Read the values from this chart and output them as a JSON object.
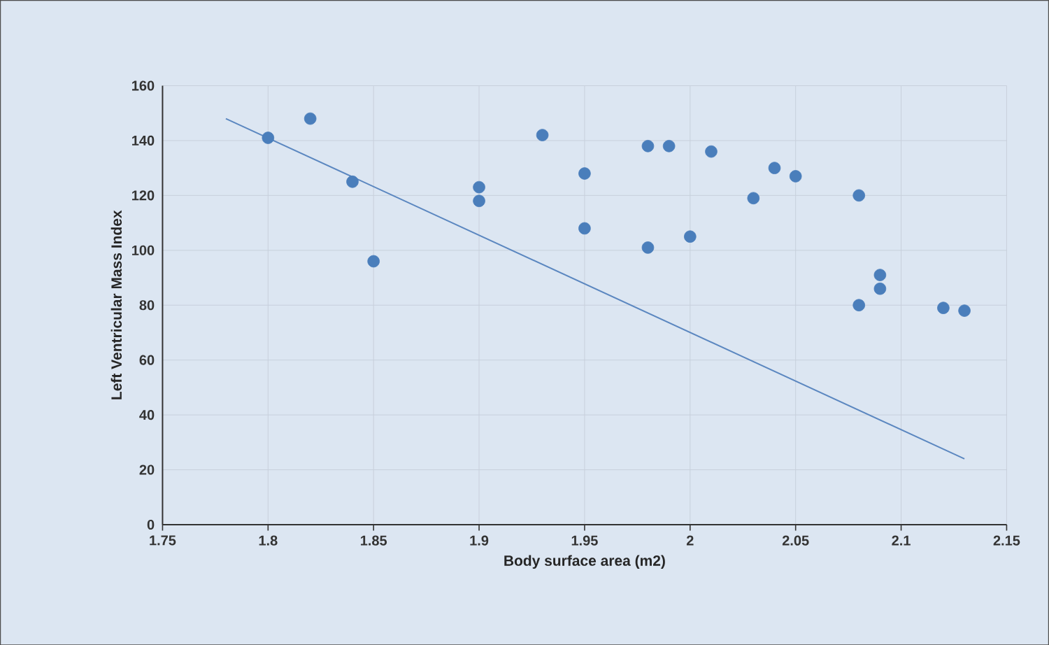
{
  "chart_data": {
    "type": "scatter",
    "xlabel": "Body surface area (m2)",
    "ylabel": "Left Ventricular Mass Index",
    "xlim": [
      1.75,
      2.15
    ],
    "xticks": [
      1.75,
      1.8,
      1.85,
      1.9,
      1.95,
      2,
      2.05,
      2.1,
      2.15
    ],
    "ylim": [
      0,
      160
    ],
    "yticks": [
      0,
      20,
      40,
      60,
      80,
      100,
      120,
      140,
      160
    ],
    "grid": true,
    "series": [
      {
        "marker": "circle",
        "color": "#4a7ebb",
        "x": [
          1.8,
          1.82,
          1.84,
          1.85,
          1.9,
          1.9,
          1.93,
          1.95,
          1.95,
          1.98,
          1.98,
          1.99,
          2.0,
          2.01,
          2.03,
          2.04,
          2.05,
          2.08,
          2.08,
          2.09,
          2.09,
          2.12,
          2.13
        ],
        "values": [
          141,
          148,
          125,
          96,
          123,
          118,
          142,
          128,
          108,
          138,
          101,
          138,
          105,
          136,
          119,
          130,
          127,
          120,
          80,
          91,
          86,
          79,
          78
        ]
      },
      {
        "type": "line",
        "marker": "none",
        "color": "#5b87c0",
        "x": [
          1.78,
          2.13
        ],
        "values": [
          148,
          24
        ]
      }
    ]
  }
}
